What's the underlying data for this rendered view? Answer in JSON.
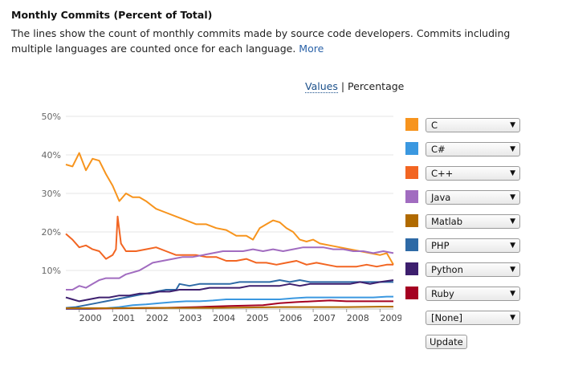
{
  "page": {
    "title": "Monthly Commits (Percent of Total)",
    "description": "The lines show the count of monthly commits made by source code developers. Commits including multiple languages are counted once for each language.",
    "more_link": "More",
    "view_toggle": {
      "values": "Values",
      "separator": "|",
      "percentage": "Percentage"
    }
  },
  "legend": {
    "items": [
      {
        "label": "C",
        "color": "#f7941d"
      },
      {
        "label": "C#",
        "color": "#3b98e0"
      },
      {
        "label": "C++",
        "color": "#f26522"
      },
      {
        "label": "Java",
        "color": "#a16cc0"
      },
      {
        "label": "Matlab",
        "color": "#b06a00"
      },
      {
        "label": "PHP",
        "color": "#2e6aa6"
      },
      {
        "label": "Python",
        "color": "#3d1f6e"
      },
      {
        "label": "Ruby",
        "color": "#a50021"
      },
      {
        "label": "[None]",
        "color": ""
      }
    ],
    "update_button": "Update"
  },
  "chart_data": {
    "type": "line",
    "xlim": [
      1999.6,
      2009.4
    ],
    "ylim": [
      0,
      50
    ],
    "x_ticks": [
      "2000",
      "2001",
      "2002",
      "2003",
      "2004",
      "2005",
      "2006",
      "2007",
      "2008",
      "2009"
    ],
    "y_ticks": [
      "10%",
      "20%",
      "30%",
      "40%",
      "50%"
    ],
    "grid": true,
    "legend_position": "right",
    "series": [
      {
        "name": "C",
        "color": "#f7941d",
        "points": [
          [
            1999.6,
            37.5
          ],
          [
            1999.8,
            37
          ],
          [
            2000.0,
            40.5
          ],
          [
            2000.2,
            36
          ],
          [
            2000.4,
            39
          ],
          [
            2000.6,
            38.5
          ],
          [
            2000.8,
            35
          ],
          [
            2001.0,
            32
          ],
          [
            2001.2,
            28
          ],
          [
            2001.4,
            30
          ],
          [
            2001.6,
            29
          ],
          [
            2001.8,
            29
          ],
          [
            2002.0,
            28
          ],
          [
            2002.3,
            26
          ],
          [
            2002.6,
            25
          ],
          [
            2002.9,
            24
          ],
          [
            2003.2,
            23
          ],
          [
            2003.5,
            22
          ],
          [
            2003.8,
            22
          ],
          [
            2004.1,
            21
          ],
          [
            2004.4,
            20.5
          ],
          [
            2004.7,
            19
          ],
          [
            2005.0,
            19
          ],
          [
            2005.2,
            18
          ],
          [
            2005.4,
            21
          ],
          [
            2005.6,
            22
          ],
          [
            2005.8,
            23
          ],
          [
            2006.0,
            22.5
          ],
          [
            2006.2,
            21
          ],
          [
            2006.4,
            20
          ],
          [
            2006.6,
            18
          ],
          [
            2006.8,
            17.5
          ],
          [
            2007.0,
            18
          ],
          [
            2007.2,
            17
          ],
          [
            2007.5,
            16.5
          ],
          [
            2007.8,
            16
          ],
          [
            2008.1,
            15.5
          ],
          [
            2008.4,
            15
          ],
          [
            2008.7,
            14.5
          ],
          [
            2009.0,
            14
          ],
          [
            2009.2,
            14.5
          ],
          [
            2009.4,
            11.5
          ]
        ]
      },
      {
        "name": "C++",
        "color": "#f26522",
        "points": [
          [
            1999.6,
            19.5
          ],
          [
            1999.8,
            18
          ],
          [
            2000.0,
            16
          ],
          [
            2000.2,
            16.5
          ],
          [
            2000.4,
            15.5
          ],
          [
            2000.6,
            15
          ],
          [
            2000.8,
            13
          ],
          [
            2001.0,
            14
          ],
          [
            2001.1,
            15.5
          ],
          [
            2001.15,
            24
          ],
          [
            2001.25,
            17
          ],
          [
            2001.4,
            15
          ],
          [
            2001.7,
            15
          ],
          [
            2002.0,
            15.5
          ],
          [
            2002.3,
            16
          ],
          [
            2002.6,
            15
          ],
          [
            2002.9,
            14
          ],
          [
            2003.2,
            14
          ],
          [
            2003.5,
            14
          ],
          [
            2003.8,
            13.5
          ],
          [
            2004.1,
            13.5
          ],
          [
            2004.4,
            12.5
          ],
          [
            2004.7,
            12.5
          ],
          [
            2005.0,
            13
          ],
          [
            2005.3,
            12
          ],
          [
            2005.6,
            12
          ],
          [
            2005.9,
            11.5
          ],
          [
            2006.2,
            12
          ],
          [
            2006.5,
            12.5
          ],
          [
            2006.8,
            11.5
          ],
          [
            2007.1,
            12
          ],
          [
            2007.4,
            11.5
          ],
          [
            2007.7,
            11
          ],
          [
            2008.0,
            11
          ],
          [
            2008.3,
            11
          ],
          [
            2008.6,
            11.5
          ],
          [
            2008.9,
            11
          ],
          [
            2009.2,
            11.5
          ],
          [
            2009.4,
            11.5
          ]
        ]
      },
      {
        "name": "Java",
        "color": "#a16cc0",
        "points": [
          [
            1999.6,
            5
          ],
          [
            1999.8,
            5
          ],
          [
            2000.0,
            6
          ],
          [
            2000.2,
            5.5
          ],
          [
            2000.4,
            6.5
          ],
          [
            2000.6,
            7.5
          ],
          [
            2000.8,
            8
          ],
          [
            2001.0,
            8
          ],
          [
            2001.2,
            8
          ],
          [
            2001.4,
            9
          ],
          [
            2001.6,
            9.5
          ],
          [
            2001.8,
            10
          ],
          [
            2002.0,
            11
          ],
          [
            2002.2,
            12
          ],
          [
            2002.5,
            12.5
          ],
          [
            2002.8,
            13
          ],
          [
            2003.1,
            13.5
          ],
          [
            2003.4,
            13.5
          ],
          [
            2003.7,
            14
          ],
          [
            2004.0,
            14.5
          ],
          [
            2004.3,
            15
          ],
          [
            2004.6,
            15
          ],
          [
            2004.9,
            15
          ],
          [
            2005.2,
            15.5
          ],
          [
            2005.5,
            15
          ],
          [
            2005.8,
            15.5
          ],
          [
            2006.1,
            15
          ],
          [
            2006.4,
            15.5
          ],
          [
            2006.7,
            16
          ],
          [
            2007.0,
            16
          ],
          [
            2007.3,
            16
          ],
          [
            2007.6,
            15.5
          ],
          [
            2007.9,
            15.5
          ],
          [
            2008.2,
            15
          ],
          [
            2008.5,
            15
          ],
          [
            2008.8,
            14.5
          ],
          [
            2009.1,
            15
          ],
          [
            2009.4,
            14.5
          ]
        ]
      },
      {
        "name": "PHP",
        "color": "#2e6aa6",
        "points": [
          [
            1999.6,
            0.3
          ],
          [
            1999.9,
            0.5
          ],
          [
            2000.2,
            1
          ],
          [
            2000.5,
            1.5
          ],
          [
            2000.8,
            2
          ],
          [
            2001.1,
            2.5
          ],
          [
            2001.4,
            3
          ],
          [
            2001.7,
            3.5
          ],
          [
            2002.0,
            4
          ],
          [
            2002.3,
            4.5
          ],
          [
            2002.6,
            5
          ],
          [
            2002.9,
            5
          ],
          [
            2003.0,
            6.5
          ],
          [
            2003.3,
            6
          ],
          [
            2003.6,
            6.5
          ],
          [
            2003.9,
            6.5
          ],
          [
            2004.2,
            6.5
          ],
          [
            2004.5,
            6.5
          ],
          [
            2004.8,
            7
          ],
          [
            2005.1,
            7
          ],
          [
            2005.4,
            7
          ],
          [
            2005.7,
            7
          ],
          [
            2006.0,
            7.5
          ],
          [
            2006.3,
            7
          ],
          [
            2006.6,
            7.5
          ],
          [
            2006.9,
            7
          ],
          [
            2007.2,
            7
          ],
          [
            2007.5,
            7
          ],
          [
            2007.8,
            7
          ],
          [
            2008.1,
            7
          ],
          [
            2008.4,
            7
          ],
          [
            2008.7,
            7
          ],
          [
            2009.0,
            7
          ],
          [
            2009.4,
            7
          ]
        ]
      },
      {
        "name": "Python",
        "color": "#3d1f6e",
        "points": [
          [
            1999.6,
            3
          ],
          [
            1999.8,
            2.5
          ],
          [
            2000.0,
            2
          ],
          [
            2000.3,
            2.5
          ],
          [
            2000.6,
            3
          ],
          [
            2000.9,
            3
          ],
          [
            2001.2,
            3.5
          ],
          [
            2001.5,
            3.5
          ],
          [
            2001.8,
            4
          ],
          [
            2002.1,
            4
          ],
          [
            2002.4,
            4.5
          ],
          [
            2002.7,
            4.5
          ],
          [
            2003.0,
            5
          ],
          [
            2003.3,
            5
          ],
          [
            2003.6,
            5
          ],
          [
            2003.9,
            5.5
          ],
          [
            2004.2,
            5.5
          ],
          [
            2004.5,
            5.5
          ],
          [
            2004.8,
            5.5
          ],
          [
            2005.1,
            6
          ],
          [
            2005.4,
            6
          ],
          [
            2005.7,
            6
          ],
          [
            2006.0,
            6
          ],
          [
            2006.3,
            6.5
          ],
          [
            2006.6,
            6
          ],
          [
            2006.9,
            6.5
          ],
          [
            2007.2,
            6.5
          ],
          [
            2007.5,
            6.5
          ],
          [
            2007.8,
            6.5
          ],
          [
            2008.1,
            6.5
          ],
          [
            2008.4,
            7
          ],
          [
            2008.7,
            6.5
          ],
          [
            2009.0,
            7
          ],
          [
            2009.4,
            7.5
          ]
        ]
      },
      {
        "name": "C#",
        "color": "#3b98e0",
        "points": [
          [
            1999.6,
            0
          ],
          [
            2000.3,
            0
          ],
          [
            2000.8,
            0.2
          ],
          [
            2001.2,
            0.5
          ],
          [
            2001.6,
            1
          ],
          [
            2002.0,
            1.2
          ],
          [
            2002.4,
            1.5
          ],
          [
            2002.8,
            1.8
          ],
          [
            2003.2,
            2
          ],
          [
            2003.6,
            2
          ],
          [
            2004.0,
            2.2
          ],
          [
            2004.4,
            2.5
          ],
          [
            2004.8,
            2.5
          ],
          [
            2005.2,
            2.5
          ],
          [
            2005.6,
            2.5
          ],
          [
            2006.0,
            2.5
          ],
          [
            2006.4,
            2.8
          ],
          [
            2006.8,
            3
          ],
          [
            2007.2,
            3
          ],
          [
            2007.6,
            3
          ],
          [
            2008.0,
            3
          ],
          [
            2008.4,
            3
          ],
          [
            2008.8,
            3
          ],
          [
            2009.2,
            3.2
          ],
          [
            2009.4,
            3.2
          ]
        ]
      },
      {
        "name": "Ruby",
        "color": "#a50021",
        "points": [
          [
            1999.6,
            0.1
          ],
          [
            2000.5,
            0.1
          ],
          [
            2001.5,
            0.2
          ],
          [
            2002.5,
            0.3
          ],
          [
            2003.5,
            0.5
          ],
          [
            2004.5,
            0.8
          ],
          [
            2005.5,
            1
          ],
          [
            2006.0,
            1.5
          ],
          [
            2006.5,
            1.8
          ],
          [
            2007.0,
            2
          ],
          [
            2007.5,
            2.2
          ],
          [
            2008.0,
            2
          ],
          [
            2008.5,
            2
          ],
          [
            2009.0,
            2
          ],
          [
            2009.4,
            2
          ]
        ]
      },
      {
        "name": "Matlab",
        "color": "#b06a00",
        "points": [
          [
            1999.6,
            0.2
          ],
          [
            2001.0,
            0.2
          ],
          [
            2002.0,
            0.3
          ],
          [
            2003.0,
            0.3
          ],
          [
            2004.0,
            0.3
          ],
          [
            2005.0,
            0.4
          ],
          [
            2006.0,
            0.5
          ],
          [
            2007.0,
            0.5
          ],
          [
            2008.0,
            0.5
          ],
          [
            2009.0,
            0.6
          ],
          [
            2009.4,
            0.6
          ]
        ]
      }
    ]
  }
}
